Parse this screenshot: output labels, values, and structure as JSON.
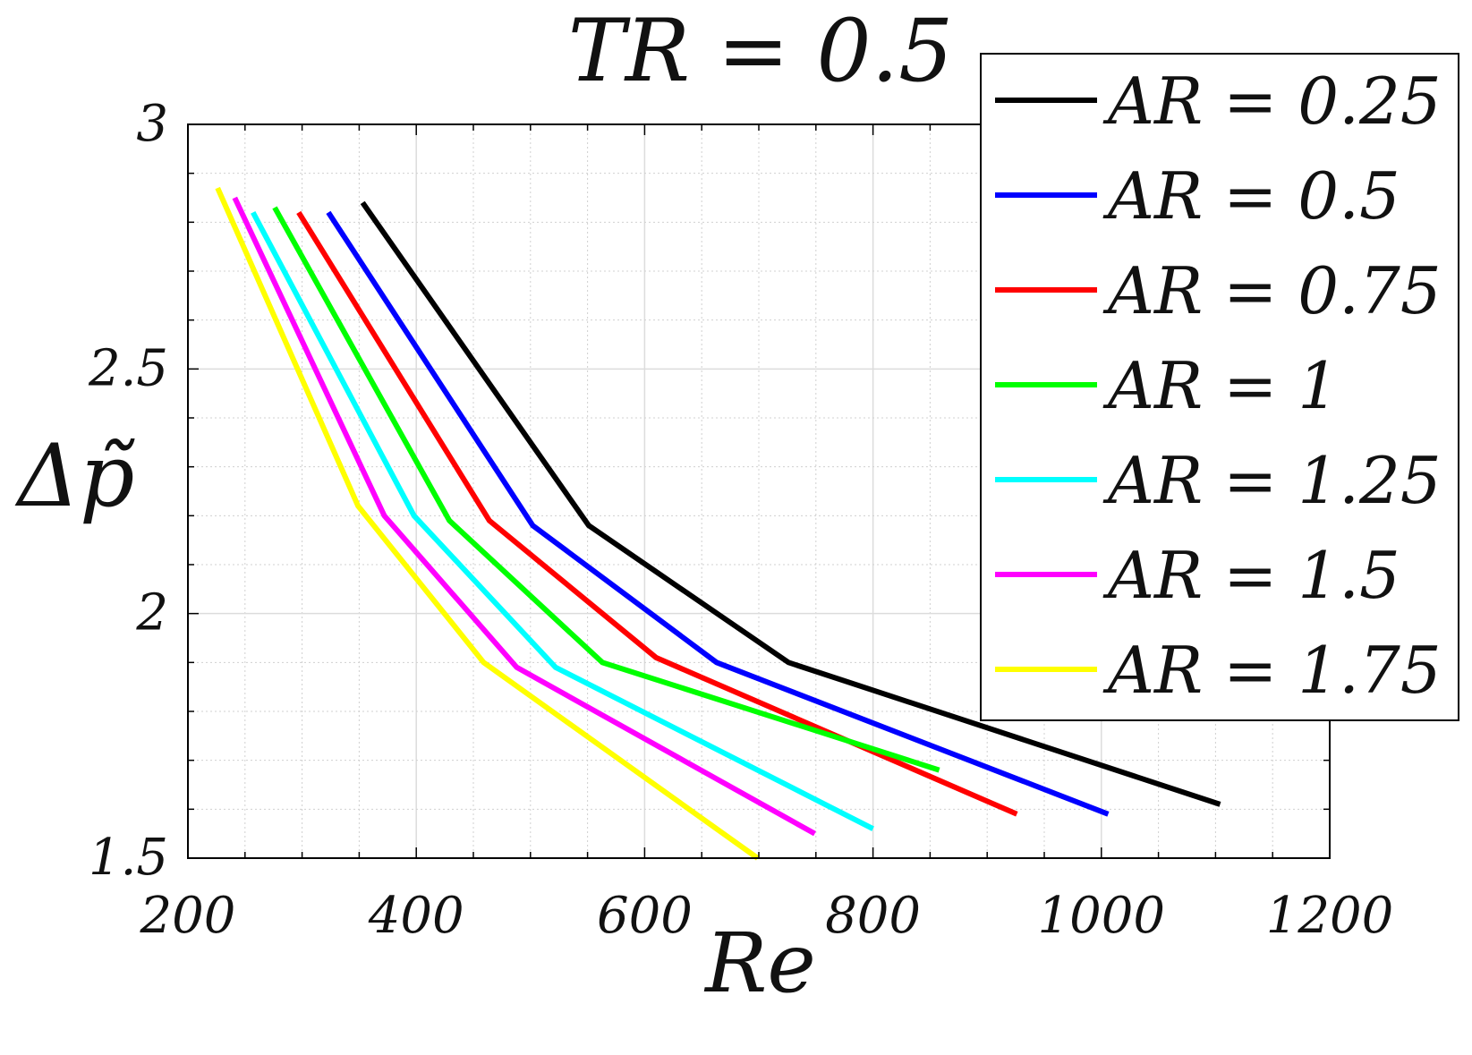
{
  "chart_data": {
    "type": "line",
    "title": "TR = 0.5",
    "xlabel": "Re",
    "ylabel": "Δp̃",
    "xlim": [
      200,
      1200
    ],
    "ylim": [
      1.5,
      3
    ],
    "xticks": [
      200,
      400,
      600,
      800,
      1000,
      1200
    ],
    "yticks": [
      1.5,
      2,
      2.5,
      3
    ],
    "xtick_labels": [
      "200",
      "400",
      "600",
      "800",
      "1000",
      "1200"
    ],
    "ytick_labels": [
      "1.5",
      "2",
      "2.5",
      "3"
    ],
    "grid": true,
    "legend_position": "top-right",
    "series": [
      {
        "name": "AR = 0.25",
        "color": "#000000",
        "x": [
          353,
          551,
          726,
          1104
        ],
        "y": [
          2.84,
          2.18,
          1.9,
          1.61
        ]
      },
      {
        "name": "AR = 0.5",
        "color": "#0000ff",
        "x": [
          323,
          502,
          663,
          1006
        ],
        "y": [
          2.82,
          2.18,
          1.9,
          1.59
        ]
      },
      {
        "name": "AR = 0.75",
        "color": "#ff0000",
        "x": [
          297,
          464,
          610,
          926
        ],
        "y": [
          2.82,
          2.19,
          1.91,
          1.59
        ]
      },
      {
        "name": "AR = 1",
        "color": "#00ff00",
        "x": [
          276,
          429,
          563,
          858
        ],
        "y": [
          2.83,
          2.19,
          1.9,
          1.68
        ]
      },
      {
        "name": "AR = 1.25",
        "color": "#00ffff",
        "x": [
          257,
          398,
          522,
          800
        ],
        "y": [
          2.82,
          2.2,
          1.89,
          1.56
        ]
      },
      {
        "name": "AR = 1.5",
        "color": "#ff00ff",
        "x": [
          241,
          372,
          488,
          749
        ],
        "y": [
          2.85,
          2.2,
          1.89,
          1.55
        ]
      },
      {
        "name": "AR = 1.75",
        "color": "#ffff00",
        "x": [
          226,
          349,
          459,
          699
        ],
        "y": [
          2.87,
          2.22,
          1.9,
          1.5
        ]
      }
    ]
  }
}
